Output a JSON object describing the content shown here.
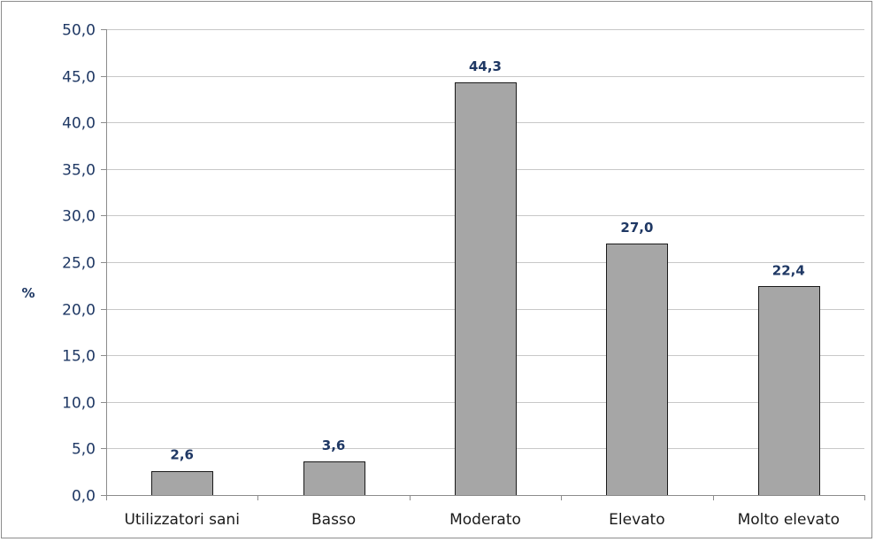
{
  "chart_data": {
    "type": "bar",
    "title": "",
    "xlabel": "",
    "ylabel": "%",
    "categories": [
      "Utilizzatori sani",
      "Basso",
      "Moderato",
      "Elevato",
      "Molto elevato"
    ],
    "values": [
      2.6,
      3.6,
      44.3,
      27.0,
      22.4
    ],
    "data_labels": [
      "2,6",
      "3,6",
      "44,3",
      "27,0",
      "22,4"
    ],
    "ylim": [
      0,
      50
    ],
    "yticks": [
      0,
      5,
      10,
      15,
      20,
      25,
      30,
      35,
      40,
      45,
      50
    ],
    "ytick_labels": [
      "0,0",
      "5,0",
      "10,0",
      "15,0",
      "20,0",
      "25,0",
      "30,0",
      "35,0",
      "40,0",
      "45,0",
      "50,0"
    ],
    "grid": true,
    "legend": "none",
    "colors": {
      "bar_fill": "#a6a6a6",
      "bar_stroke": "#1a1a1a",
      "label_text": "#1f3864",
      "gridline": "#c8c8c8"
    }
  }
}
